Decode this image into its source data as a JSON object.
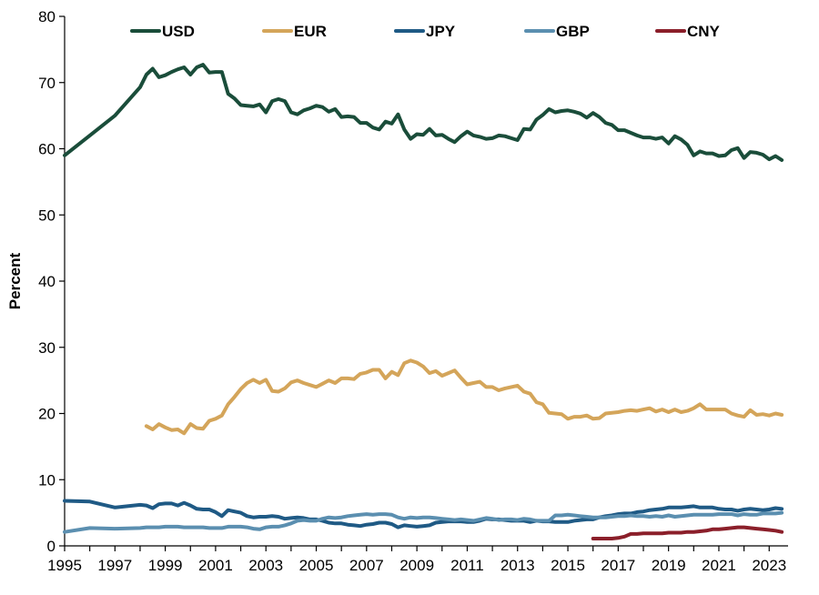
{
  "chart_data": {
    "type": "line",
    "title": "",
    "xlabel": "",
    "ylabel": "Percent",
    "xlim": [
      1995,
      2023.75
    ],
    "ylim": [
      0,
      80
    ],
    "yticks": [
      0,
      10,
      20,
      30,
      40,
      50,
      60,
      70,
      80
    ],
    "xticks": [
      1995,
      1997,
      1999,
      2001,
      2003,
      2005,
      2007,
      2009,
      2011,
      2013,
      2015,
      2017,
      2019,
      2021,
      2023
    ],
    "grid": false,
    "legend_position": "top",
    "series": [
      {
        "name": "USD",
        "color": "#1a4d3a",
        "x": [
          1995,
          1996,
          1997,
          1998,
          1998.25,
          1998.5,
          1998.75,
          1999,
          1999.25,
          1999.5,
          1999.75,
          2000,
          2000.25,
          2000.5,
          2000.75,
          2001,
          2001.25,
          2001.5,
          2001.75,
          2002,
          2002.25,
          2002.5,
          2002.75,
          2003,
          2003.25,
          2003.5,
          2003.75,
          2004,
          2004.25,
          2004.5,
          2004.75,
          2005,
          2005.25,
          2005.5,
          2005.75,
          2006,
          2006.25,
          2006.5,
          2006.75,
          2007,
          2007.25,
          2007.5,
          2007.75,
          2008,
          2008.25,
          2008.5,
          2008.75,
          2009,
          2009.25,
          2009.5,
          2009.75,
          2010,
          2010.25,
          2010.5,
          2010.75,
          2011,
          2011.25,
          2011.5,
          2011.75,
          2012,
          2012.25,
          2012.5,
          2012.75,
          2013,
          2013.25,
          2013.5,
          2013.75,
          2014,
          2014.25,
          2014.5,
          2014.75,
          2015,
          2015.25,
          2015.5,
          2015.75,
          2016,
          2016.25,
          2016.5,
          2016.75,
          2017,
          2017.25,
          2017.5,
          2017.75,
          2018,
          2018.25,
          2018.5,
          2018.75,
          2019,
          2019.25,
          2019.5,
          2019.75,
          2020,
          2020.25,
          2020.5,
          2020.75,
          2021,
          2021.25,
          2021.5,
          2021.75,
          2022,
          2022.25,
          2022.5,
          2022.75,
          2023,
          2023.25,
          2023.5
        ],
        "values": [
          59.0,
          62.0,
          65.0,
          69.3,
          71.2,
          72.1,
          70.8,
          71.1,
          71.6,
          72.0,
          72.3,
          71.2,
          72.3,
          72.7,
          71.5,
          71.6,
          71.6,
          68.3,
          67.6,
          66.6,
          66.5,
          66.4,
          66.7,
          65.5,
          67.2,
          67.5,
          67.2,
          65.5,
          65.2,
          65.8,
          66.1,
          66.5,
          66.3,
          65.6,
          66.0,
          64.8,
          64.9,
          64.8,
          63.9,
          63.9,
          63.2,
          62.9,
          64.1,
          63.8,
          65.2,
          62.9,
          61.5,
          62.2,
          62.1,
          63.0,
          62.0,
          62.1,
          61.5,
          61.0,
          61.9,
          62.6,
          62.0,
          61.8,
          61.5,
          61.6,
          62.0,
          61.9,
          61.6,
          61.3,
          63.0,
          62.9,
          64.4,
          65.1,
          66.0,
          65.5,
          65.7,
          65.8,
          65.6,
          65.3,
          64.7,
          65.4,
          64.8,
          63.9,
          63.6,
          62.8,
          62.8,
          62.4,
          62.0,
          61.7,
          61.7,
          61.5,
          61.7,
          60.8,
          61.9,
          61.4,
          60.6,
          59.0,
          59.6,
          59.3,
          59.3,
          58.9,
          59.0,
          59.8,
          60.1,
          58.6,
          59.5,
          59.4,
          59.1,
          58.4,
          58.9,
          58.3
        ]
      },
      {
        "name": "EUR",
        "color": "#d4a55a",
        "x": [
          1998.25,
          1998.5,
          1998.75,
          1999,
          1999.25,
          1999.5,
          1999.75,
          2000,
          2000.25,
          2000.5,
          2000.75,
          2001,
          2001.25,
          2001.5,
          2001.75,
          2002,
          2002.25,
          2002.5,
          2002.75,
          2003,
          2003.25,
          2003.5,
          2003.75,
          2004,
          2004.25,
          2004.5,
          2004.75,
          2005,
          2005.25,
          2005.5,
          2005.75,
          2006,
          2006.25,
          2006.5,
          2006.75,
          2007,
          2007.25,
          2007.5,
          2007.75,
          2008,
          2008.25,
          2008.5,
          2008.75,
          2009,
          2009.25,
          2009.5,
          2009.75,
          2010,
          2010.25,
          2010.5,
          2010.75,
          2011,
          2011.25,
          2011.5,
          2011.75,
          2012,
          2012.25,
          2012.5,
          2012.75,
          2013,
          2013.25,
          2013.5,
          2013.75,
          2014,
          2014.25,
          2014.5,
          2014.75,
          2015,
          2015.25,
          2015.5,
          2015.75,
          2016,
          2016.25,
          2016.5,
          2016.75,
          2017,
          2017.25,
          2017.5,
          2017.75,
          2018,
          2018.25,
          2018.5,
          2018.75,
          2019,
          2019.25,
          2019.5,
          2019.75,
          2020,
          2020.25,
          2020.5,
          2020.75,
          2021,
          2021.25,
          2021.5,
          2021.75,
          2022,
          2022.25,
          2022.5,
          2022.75,
          2023,
          2023.25,
          2023.5
        ],
        "values": [
          18.1,
          17.6,
          18.4,
          17.9,
          17.5,
          17.6,
          17.0,
          18.4,
          17.8,
          17.7,
          18.9,
          19.2,
          19.7,
          21.4,
          22.5,
          23.7,
          24.6,
          25.1,
          24.6,
          25.1,
          23.4,
          23.3,
          23.8,
          24.7,
          25.0,
          24.6,
          24.3,
          24.0,
          24.5,
          25.0,
          24.6,
          25.3,
          25.3,
          25.2,
          26.0,
          26.2,
          26.6,
          26.6,
          25.3,
          26.3,
          25.8,
          27.6,
          28.0,
          27.7,
          27.1,
          26.1,
          26.4,
          25.7,
          26.1,
          26.5,
          25.4,
          24.4,
          24.6,
          24.8,
          24.0,
          24.0,
          23.5,
          23.8,
          24.0,
          24.2,
          23.3,
          23.0,
          21.7,
          21.4,
          20.1,
          20.0,
          19.9,
          19.2,
          19.5,
          19.5,
          19.7,
          19.2,
          19.3,
          20.0,
          20.1,
          20.2,
          20.4,
          20.5,
          20.4,
          20.6,
          20.8,
          20.3,
          20.6,
          20.2,
          20.6,
          20.2,
          20.4,
          20.8,
          21.4,
          20.6,
          20.6,
          20.6,
          20.6,
          20.0,
          19.7,
          19.5,
          20.5,
          19.8,
          19.9,
          19.7,
          20.0,
          19.8
        ]
      },
      {
        "name": "JPY",
        "color": "#1f5a85",
        "x": [
          1995,
          1996,
          1997,
          1998,
          1998.25,
          1998.5,
          1998.75,
          1999,
          1999.25,
          1999.5,
          1999.75,
          2000,
          2000.25,
          2000.5,
          2000.75,
          2001,
          2001.25,
          2001.5,
          2001.75,
          2002,
          2002.25,
          2002.5,
          2002.75,
          2003,
          2003.25,
          2003.5,
          2003.75,
          2004,
          2004.25,
          2004.5,
          2004.75,
          2005,
          2005.25,
          2005.5,
          2005.75,
          2006,
          2006.25,
          2006.5,
          2006.75,
          2007,
          2007.25,
          2007.5,
          2007.75,
          2008,
          2008.25,
          2008.5,
          2008.75,
          2009,
          2009.25,
          2009.5,
          2009.75,
          2010,
          2010.25,
          2010.5,
          2010.75,
          2011,
          2011.25,
          2011.5,
          2011.75,
          2012,
          2012.25,
          2012.5,
          2012.75,
          2013,
          2013.25,
          2013.5,
          2013.75,
          2014,
          2014.25,
          2014.5,
          2014.75,
          2015,
          2015.25,
          2015.5,
          2015.75,
          2016,
          2016.25,
          2016.5,
          2016.75,
          2017,
          2017.25,
          2017.5,
          2017.75,
          2018,
          2018.25,
          2018.5,
          2018.75,
          2019,
          2019.25,
          2019.5,
          2019.75,
          2020,
          2020.25,
          2020.5,
          2020.75,
          2021,
          2021.25,
          2021.5,
          2021.75,
          2022,
          2022.25,
          2022.5,
          2022.75,
          2023,
          2023.25,
          2023.5
        ],
        "values": [
          6.8,
          6.7,
          5.8,
          6.2,
          6.1,
          5.7,
          6.3,
          6.4,
          6.4,
          6.1,
          6.5,
          6.1,
          5.6,
          5.5,
          5.5,
          5.1,
          4.5,
          5.4,
          5.2,
          5.0,
          4.5,
          4.3,
          4.4,
          4.4,
          4.5,
          4.4,
          4.1,
          4.2,
          4.3,
          4.2,
          4.0,
          4.0,
          3.8,
          3.5,
          3.4,
          3.4,
          3.2,
          3.1,
          3.0,
          3.2,
          3.3,
          3.5,
          3.5,
          3.3,
          2.8,
          3.1,
          3.0,
          2.9,
          3.0,
          3.1,
          3.5,
          3.6,
          3.7,
          3.7,
          3.7,
          3.6,
          3.6,
          3.8,
          4.1,
          4.0,
          4.0,
          3.9,
          3.8,
          3.8,
          3.8,
          3.6,
          3.8,
          3.7,
          3.7,
          3.6,
          3.6,
          3.6,
          3.8,
          3.9,
          4.0,
          4.0,
          4.3,
          4.5,
          4.6,
          4.8,
          4.9,
          4.9,
          5.1,
          5.2,
          5.4,
          5.5,
          5.6,
          5.8,
          5.8,
          5.8,
          5.9,
          6.0,
          5.8,
          5.8,
          5.8,
          5.6,
          5.5,
          5.5,
          5.3,
          5.5,
          5.6,
          5.5,
          5.4,
          5.5,
          5.7,
          5.6
        ]
      },
      {
        "name": "GBP",
        "color": "#5b8fb0",
        "x": [
          1995,
          1996,
          1997,
          1998,
          1998.25,
          1998.5,
          1998.75,
          1999,
          1999.25,
          1999.5,
          1999.75,
          2000,
          2000.25,
          2000.5,
          2000.75,
          2001,
          2001.25,
          2001.5,
          2001.75,
          2002,
          2002.25,
          2002.5,
          2002.75,
          2003,
          2003.25,
          2003.5,
          2003.75,
          2004,
          2004.25,
          2004.5,
          2004.75,
          2005,
          2005.25,
          2005.5,
          2005.75,
          2006,
          2006.25,
          2006.5,
          2006.75,
          2007,
          2007.25,
          2007.5,
          2007.75,
          2008,
          2008.25,
          2008.5,
          2008.75,
          2009,
          2009.25,
          2009.5,
          2009.75,
          2010,
          2010.25,
          2010.5,
          2010.75,
          2011,
          2011.25,
          2011.5,
          2011.75,
          2012,
          2012.25,
          2012.5,
          2012.75,
          2013,
          2013.25,
          2013.5,
          2013.75,
          2014,
          2014.25,
          2014.5,
          2014.75,
          2015,
          2015.25,
          2015.5,
          2015.75,
          2016,
          2016.25,
          2016.5,
          2016.75,
          2017,
          2017.25,
          2017.5,
          2017.75,
          2018,
          2018.25,
          2018.5,
          2018.75,
          2019,
          2019.25,
          2019.5,
          2019.75,
          2020,
          2020.25,
          2020.5,
          2020.75,
          2021,
          2021.25,
          2021.5,
          2021.75,
          2022,
          2022.25,
          2022.5,
          2022.75,
          2023,
          2023.25,
          2023.5
        ],
        "values": [
          2.1,
          2.7,
          2.6,
          2.7,
          2.8,
          2.8,
          2.8,
          2.9,
          2.9,
          2.9,
          2.8,
          2.8,
          2.8,
          2.8,
          2.7,
          2.7,
          2.7,
          2.9,
          2.9,
          2.9,
          2.8,
          2.6,
          2.5,
          2.8,
          2.9,
          2.9,
          3.1,
          3.4,
          3.8,
          3.9,
          3.8,
          3.8,
          4.1,
          4.3,
          4.2,
          4.3,
          4.5,
          4.6,
          4.7,
          4.8,
          4.7,
          4.8,
          4.8,
          4.7,
          4.3,
          4.1,
          4.3,
          4.2,
          4.3,
          4.3,
          4.2,
          4.1,
          4.0,
          3.9,
          4.0,
          3.9,
          3.8,
          4.0,
          4.2,
          4.1,
          3.9,
          4.0,
          4.0,
          3.9,
          4.1,
          4.0,
          3.8,
          3.8,
          3.8,
          4.6,
          4.6,
          4.7,
          4.6,
          4.5,
          4.4,
          4.3,
          4.3,
          4.3,
          4.4,
          4.5,
          4.5,
          4.6,
          4.5,
          4.5,
          4.4,
          4.5,
          4.4,
          4.6,
          4.4,
          4.5,
          4.6,
          4.7,
          4.7,
          4.7,
          4.7,
          4.8,
          4.8,
          4.8,
          4.6,
          4.8,
          4.7,
          4.7,
          4.9,
          4.9,
          4.9,
          5.0
        ]
      },
      {
        "name": "CNY",
        "color": "#8b1f2a",
        "x": [
          2016,
          2016.25,
          2016.5,
          2016.75,
          2017,
          2017.25,
          2017.5,
          2017.75,
          2018,
          2018.25,
          2018.5,
          2018.75,
          2019,
          2019.25,
          2019.5,
          2019.75,
          2020,
          2020.25,
          2020.5,
          2020.75,
          2021,
          2021.25,
          2021.5,
          2021.75,
          2022,
          2022.25,
          2022.5,
          2022.75,
          2023,
          2023.25,
          2023.5
        ],
        "values": [
          1.1,
          1.1,
          1.1,
          1.1,
          1.2,
          1.4,
          1.8,
          1.8,
          1.9,
          1.9,
          1.9,
          1.9,
          2.0,
          2.0,
          2.0,
          2.1,
          2.1,
          2.2,
          2.3,
          2.5,
          2.5,
          2.6,
          2.7,
          2.8,
          2.8,
          2.7,
          2.6,
          2.5,
          2.4,
          2.3,
          2.1
        ]
      }
    ]
  }
}
